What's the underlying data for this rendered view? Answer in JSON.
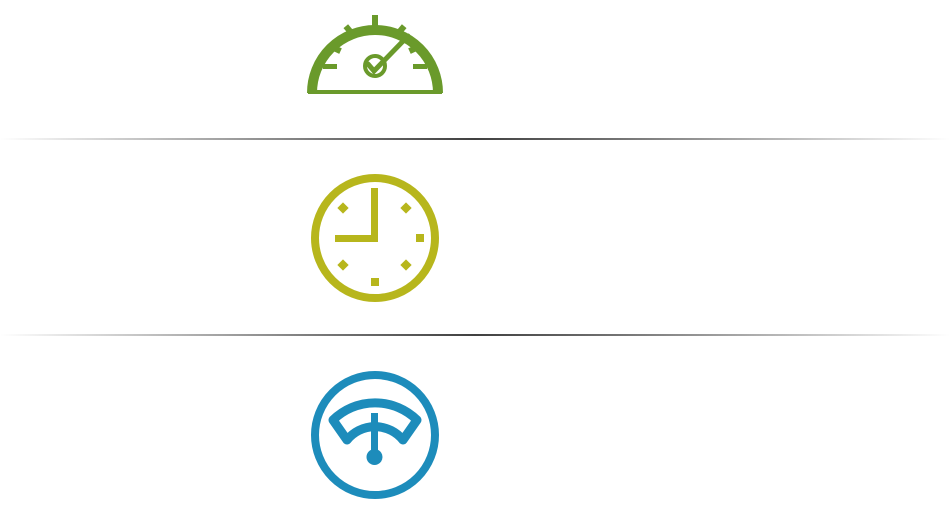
{
  "icons": [
    {
      "name": "speedometer-icon",
      "color": "#6a9a2b"
    },
    {
      "name": "clock-icon",
      "color": "#b7b61c"
    },
    {
      "name": "gauge-icon",
      "color": "#1d8cbb"
    }
  ]
}
